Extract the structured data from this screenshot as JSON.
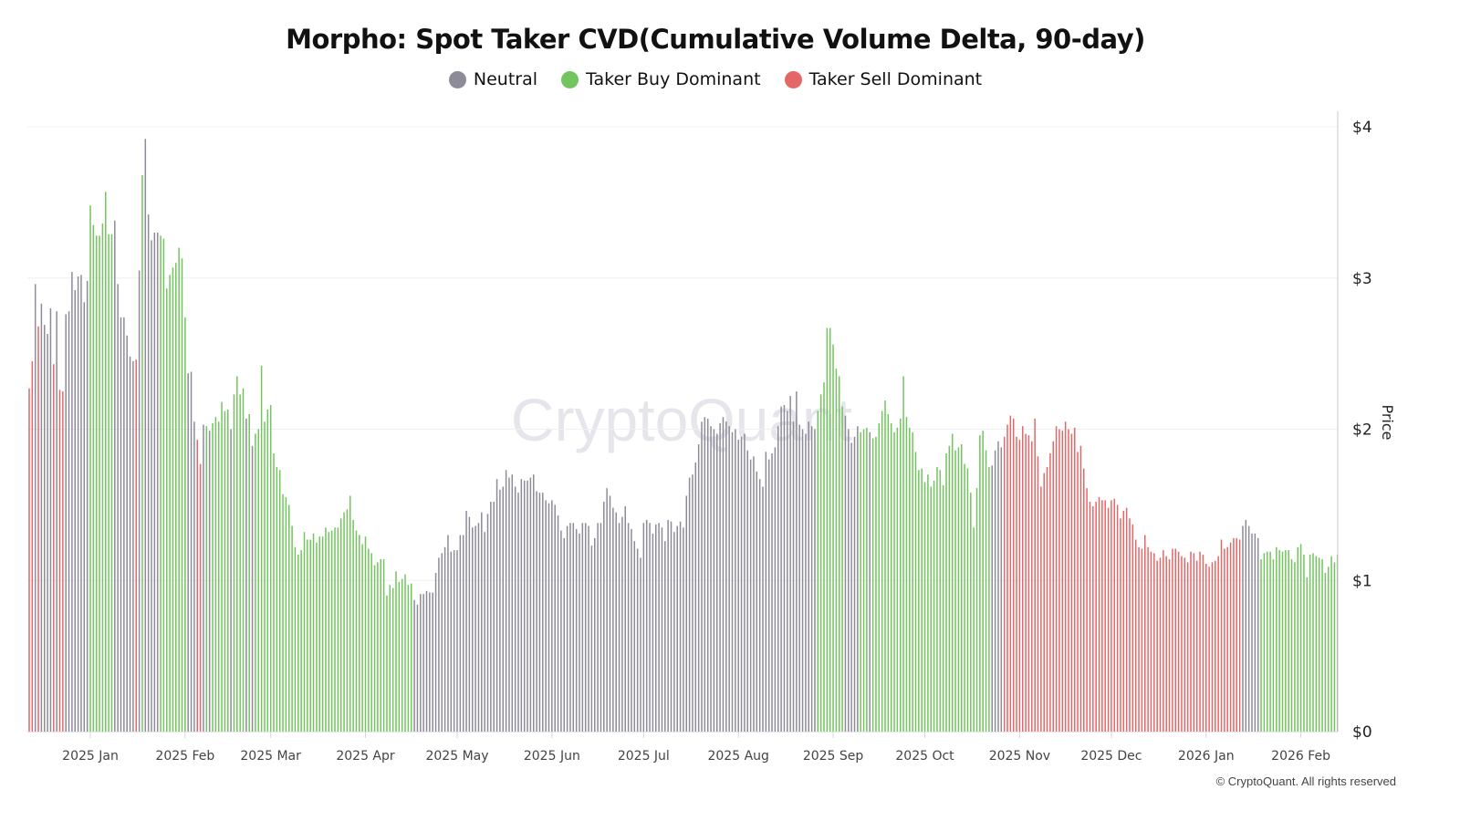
{
  "chart_data": {
    "type": "bar",
    "title": "Morpho: Spot Taker CVD(Cumulative Volume Delta, 90-day)",
    "ylabel": "Price",
    "ylim": [
      0,
      4
    ],
    "y_ticks": [
      "$0",
      "$1",
      "$2",
      "$3",
      "$4"
    ],
    "y_axis_side": "right",
    "grid": true,
    "legend_placement": "top-center",
    "legend": [
      {
        "code": "N",
        "label": "Neutral",
        "color": "#8d8b98"
      },
      {
        "code": "B",
        "label": "Taker Buy Dominant",
        "color": "#72c45e"
      },
      {
        "code": "S",
        "label": "Taker Sell Dominant",
        "color": "#e46767"
      }
    ],
    "x_ticks": [
      {
        "date": "2025-01-01",
        "label": "2025 Jan"
      },
      {
        "date": "2025-02-01",
        "label": "2025 Feb"
      },
      {
        "date": "2025-03-01",
        "label": "2025 Mar"
      },
      {
        "date": "2025-04-01",
        "label": "2025 Apr"
      },
      {
        "date": "2025-05-01",
        "label": "2025 May"
      },
      {
        "date": "2025-06-01",
        "label": "2025 Jun"
      },
      {
        "date": "2025-07-01",
        "label": "2025 Jul"
      },
      {
        "date": "2025-08-01",
        "label": "2025 Aug"
      },
      {
        "date": "2025-09-01",
        "label": "2025 Sep"
      },
      {
        "date": "2025-10-01",
        "label": "2025 Oct"
      },
      {
        "date": "2025-11-01",
        "label": "2025 Nov"
      },
      {
        "date": "2025-12-01",
        "label": "2025 Dec"
      },
      {
        "date": "2026-01-01",
        "label": "2026 Jan"
      },
      {
        "date": "2026-02-01",
        "label": "2026 Feb"
      }
    ],
    "daily_by_month": [
      {
        "month": "2024-12",
        "first_day": 12,
        "dominance": "SSNSNNNNSNSSNNNNNNNN",
        "prices": [
          2.27,
          2.45,
          2.96,
          2.68,
          2.83,
          2.69,
          2.63,
          2.8,
          2.43,
          2.78,
          2.26,
          2.25,
          2.76,
          2.78,
          3.04,
          2.92,
          3.01,
          3.02,
          2.84,
          2.98
        ]
      },
      {
        "month": "2025-01",
        "first_day": 1,
        "dominance": "BBBBBBBBNNNNNNNSNBNNNNNBBBBBBBB",
        "prices": [
          3.48,
          3.35,
          3.28,
          3.28,
          3.36,
          3.57,
          3.29,
          3.29,
          3.38,
          2.96,
          2.74,
          2.74,
          2.62,
          2.48,
          2.45,
          2.46,
          3.05,
          3.68,
          3.92,
          3.42,
          3.25,
          3.3,
          3.3,
          3.28,
          3.26,
          2.93,
          3.02,
          3.07,
          3.1,
          3.2,
          3.13
        ]
      },
      {
        "month": "2025-02",
        "first_day": 1,
        "dominance": "BNNNSSNBNBBBBBBNBBBBNBNBBBBB",
        "prices": [
          2.74,
          2.37,
          2.38,
          2.05,
          1.93,
          1.77,
          2.03,
          2.02,
          1.99,
          2.04,
          2.08,
          2.05,
          2.18,
          2.12,
          2.13,
          2.0,
          2.23,
          2.35,
          2.23,
          2.27,
          2.07,
          2.1,
          1.89,
          1.97,
          2.0,
          2.42,
          2.05,
          2.13
        ]
      },
      {
        "month": "2025-03",
        "first_day": 1,
        "dominance": "BBBBBBBBBBBBBBBBBBBBBBBBBBBBBBB",
        "prices": [
          2.16,
          1.84,
          1.75,
          1.73,
          1.57,
          1.55,
          1.5,
          1.36,
          1.22,
          1.17,
          1.2,
          1.32,
          1.27,
          1.27,
          1.31,
          1.25,
          1.29,
          1.29,
          1.35,
          1.32,
          1.33,
          1.35,
          1.35,
          1.41,
          1.45,
          1.47,
          1.56,
          1.4,
          1.33,
          1.3,
          1.24
        ]
      },
      {
        "month": "2025-04",
        "first_day": 1,
        "dominance": "BBBBBBBBBBBBBBBBNNNNNNNNNNNNNN",
        "prices": [
          1.29,
          1.21,
          1.18,
          1.1,
          1.12,
          1.14,
          1.14,
          0.9,
          0.97,
          0.95,
          1.06,
          0.99,
          1.01,
          1.04,
          0.97,
          0.98,
          0.87,
          0.84,
          0.91,
          0.91,
          0.93,
          0.92,
          0.92,
          1.05,
          1.15,
          1.18,
          1.22,
          1.3,
          1.19,
          1.2
        ]
      },
      {
        "month": "2025-05",
        "first_day": 1,
        "dominance": "NNNNNNNNNNNNNNNNNNNNNNNNNNNNNNN",
        "prices": [
          1.2,
          1.3,
          1.3,
          1.46,
          1.42,
          1.35,
          1.36,
          1.38,
          1.45,
          1.32,
          1.44,
          1.52,
          1.52,
          1.67,
          1.6,
          1.62,
          1.73,
          1.68,
          1.7,
          1.62,
          1.58,
          1.67,
          1.66,
          1.66,
          1.68,
          1.7,
          1.59,
          1.58,
          1.58,
          1.53,
          1.51
        ]
      },
      {
        "month": "2025-06",
        "first_day": 1,
        "dominance": "NNNNNNNNNNNNNNNNNNNNNNNNNNNNNN",
        "prices": [
          1.53,
          1.5,
          1.43,
          1.33,
          1.28,
          1.36,
          1.38,
          1.38,
          1.34,
          1.31,
          1.38,
          1.38,
          1.36,
          1.23,
          1.28,
          1.38,
          1.38,
          1.52,
          1.61,
          1.56,
          1.48,
          1.45,
          1.38,
          1.42,
          1.49,
          1.38,
          1.34,
          1.26,
          1.21,
          1.15
        ]
      },
      {
        "month": "2025-07",
        "first_day": 1,
        "dominance": "NNNNNNNNNNNNNNNNNNNNNNNNNNNNNNN",
        "prices": [
          1.38,
          1.4,
          1.38,
          1.31,
          1.37,
          1.38,
          1.35,
          1.26,
          1.4,
          1.39,
          1.32,
          1.36,
          1.39,
          1.35,
          1.56,
          1.68,
          1.7,
          1.78,
          1.9,
          2.05,
          2.08,
          2.07,
          2.02,
          2.0,
          1.97,
          2.04,
          2.08,
          2.05,
          2.02,
          1.98,
          2.0
        ]
      },
      {
        "month": "2025-08",
        "first_day": 1,
        "dominance": "NNNNNNNNNNNNNNNNNNNNNNNNNNBBBBB",
        "prices": [
          1.93,
          1.95,
          1.97,
          1.86,
          1.8,
          1.82,
          1.72,
          1.67,
          1.62,
          1.85,
          1.8,
          1.84,
          1.88,
          2.02,
          2.15,
          2.16,
          2.12,
          2.22,
          2.05,
          2.25,
          2.03,
          2.0,
          1.97,
          2.05,
          2.02,
          2.0,
          2.12,
          2.23,
          2.31,
          2.67,
          2.67
        ]
      },
      {
        "month": "2025-09",
        "first_day": 1,
        "dominance": "BBBBNNNNNBBBNBBBBBBBBBBBBBBBBB",
        "prices": [
          2.56,
          2.4,
          2.35,
          2.15,
          2.09,
          2.0,
          1.91,
          1.95,
          2.02,
          1.98,
          2.0,
          2.01,
          1.98,
          1.94,
          1.95,
          2.04,
          2.12,
          2.19,
          2.1,
          2.04,
          1.98,
          2.01,
          2.07,
          2.35,
          2.08,
          2.01,
          1.98,
          1.85,
          1.73,
          1.74
        ]
      },
      {
        "month": "2025-10",
        "first_day": 1,
        "dominance": "BBBBBBBBBBBBBBBBBBBBBBNNNNSSSSS",
        "prices": [
          1.65,
          1.7,
          1.62,
          1.66,
          1.75,
          1.73,
          1.63,
          1.84,
          1.89,
          1.97,
          1.86,
          1.88,
          1.9,
          1.77,
          1.74,
          1.58,
          1.35,
          1.61,
          1.96,
          1.99,
          1.86,
          1.75,
          1.76,
          1.86,
          1.92,
          1.88,
          1.95,
          2.03,
          2.09,
          2.07,
          1.95
        ]
      },
      {
        "month": "2025-11",
        "first_day": 1,
        "dominance": "SSSSSSSSSSSSSSSSSSSSSSSSSSSSSS",
        "prices": [
          1.93,
          2.02,
          1.97,
          1.96,
          1.92,
          2.07,
          1.82,
          1.62,
          1.71,
          1.75,
          1.84,
          1.92,
          2.02,
          2.0,
          1.99,
          2.05,
          2.0,
          1.97,
          2.01,
          1.85,
          1.89,
          1.74,
          1.61,
          1.52,
          1.49,
          1.52,
          1.55,
          1.53,
          1.53,
          1.48
        ]
      },
      {
        "month": "2025-12",
        "first_day": 1,
        "dominance": "SSSSSSSSSSSSSSSSSSSSSSSSSSSSSSS",
        "prices": [
          1.53,
          1.54,
          1.5,
          1.41,
          1.46,
          1.48,
          1.41,
          1.37,
          1.27,
          1.22,
          1.21,
          1.3,
          1.22,
          1.19,
          1.18,
          1.13,
          1.15,
          1.2,
          1.16,
          1.14,
          1.21,
          1.21,
          1.19,
          1.16,
          1.15,
          1.12,
          1.19,
          1.18,
          1.13,
          1.19,
          1.17
        ]
      },
      {
        "month": "2026-01",
        "first_day": 1,
        "dominance": "SSSSSSSSSSSSNNNNNNBBBBBBBBBBBBB",
        "prices": [
          1.11,
          1.09,
          1.12,
          1.13,
          1.16,
          1.27,
          1.21,
          1.22,
          1.25,
          1.28,
          1.28,
          1.27,
          1.36,
          1.4,
          1.36,
          1.31,
          1.31,
          1.28,
          1.14,
          1.18,
          1.19,
          1.19,
          1.14,
          1.22,
          1.2,
          1.19,
          1.2,
          1.2,
          1.14,
          1.12,
          1.22
        ]
      },
      {
        "month": "2026-02",
        "first_day": 1,
        "dominance": "BBBBBBBBBBBBB",
        "prices": [
          1.24,
          1.17,
          1.02,
          1.17,
          1.18,
          1.16,
          1.15,
          1.14,
          1.05,
          1.09,
          1.16,
          1.12,
          1.17
        ]
      }
    ]
  },
  "watermark": "CryptoQuant",
  "copyright": "© CryptoQuant. All rights reserved"
}
